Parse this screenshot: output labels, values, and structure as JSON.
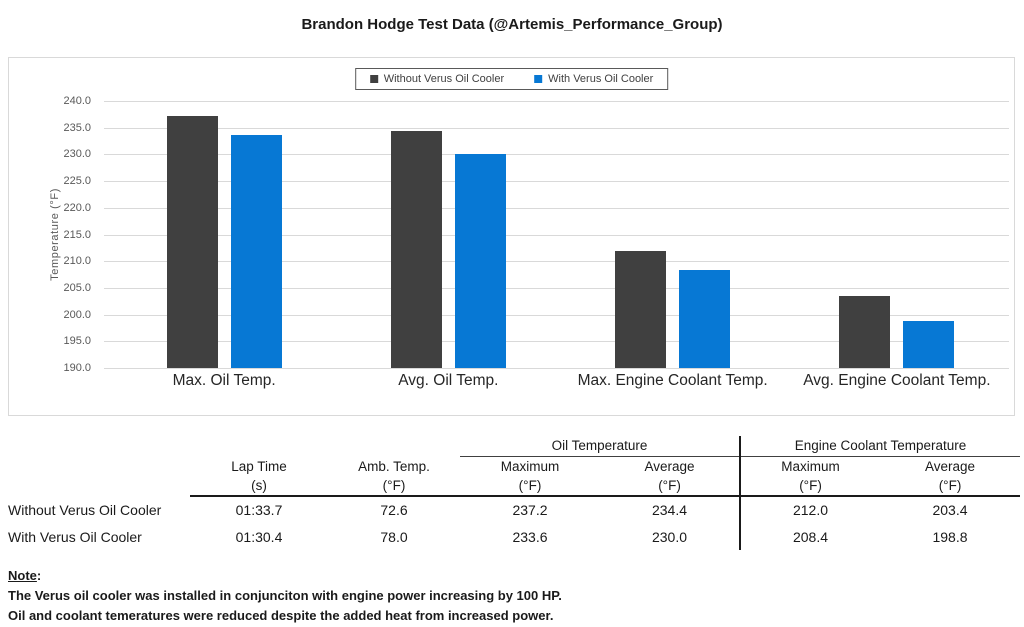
{
  "title": "Brandon Hodge Test Data (@Artemis_Performance_Group)",
  "colors": {
    "series_without": "#404040",
    "series_with": "#0778d4",
    "gridline": "#d9d9d9",
    "axis_text": "#595959",
    "chart_border": "#d9d9d9"
  },
  "chart_data": {
    "type": "bar",
    "title": "Brandon Hodge Test Data (@Artemis_Performance_Group)",
    "categories": [
      "Max. Oil Temp.",
      "Avg. Oil Temp.",
      "Max. Engine Coolant Temp.",
      "Avg. Engine Coolant Temp."
    ],
    "series": [
      {
        "name": "Without Verus Oil Cooler",
        "color": "#404040",
        "values": [
          237.2,
          234.4,
          212.0,
          203.4
        ]
      },
      {
        "name": "With Verus Oil Cooler",
        "color": "#0778d4",
        "values": [
          233.6,
          230.0,
          208.4,
          198.8
        ]
      }
    ],
    "xlabel": "",
    "ylabel": "Temperature (°F)",
    "ylim": [
      190.0,
      240.0
    ],
    "ytick_step": 5.0,
    "ytick_labels": [
      "240.0",
      "235.0",
      "230.0",
      "225.0",
      "220.0",
      "215.0",
      "210.0",
      "205.0",
      "200.0",
      "195.0",
      "190.0"
    ],
    "grid": true,
    "legend_position": "top-center"
  },
  "table": {
    "group_headers": [
      {
        "label": "Oil Temperature"
      },
      {
        "label": "Engine Coolant Temperature"
      }
    ],
    "columns": [
      {
        "label": "Lap Time",
        "unit": "(s)"
      },
      {
        "label": "Amb. Temp.",
        "unit": "(°F)"
      },
      {
        "label": "Maximum",
        "unit": "(°F)"
      },
      {
        "label": "Average",
        "unit": "(°F)"
      },
      {
        "label": "Maximum",
        "unit": "(°F)"
      },
      {
        "label": "Average",
        "unit": "(°F)"
      }
    ],
    "rows": [
      {
        "label": "Without Verus Oil Cooler",
        "values": [
          "01:33.7",
          "72.6",
          "237.2",
          "234.4",
          "212.0",
          "203.4"
        ]
      },
      {
        "label": "With Verus Oil Cooler",
        "values": [
          "01:30.4",
          "78.0",
          "233.6",
          "230.0",
          "208.4",
          "198.8"
        ]
      }
    ]
  },
  "note": {
    "heading": "Note",
    "colon": ":",
    "lines": [
      "The Verus oil cooler was installed in conjunciton with engine power increasing by 100 HP.",
      "Oil and coolant temeratures were reduced despite the added heat from increased power."
    ]
  }
}
